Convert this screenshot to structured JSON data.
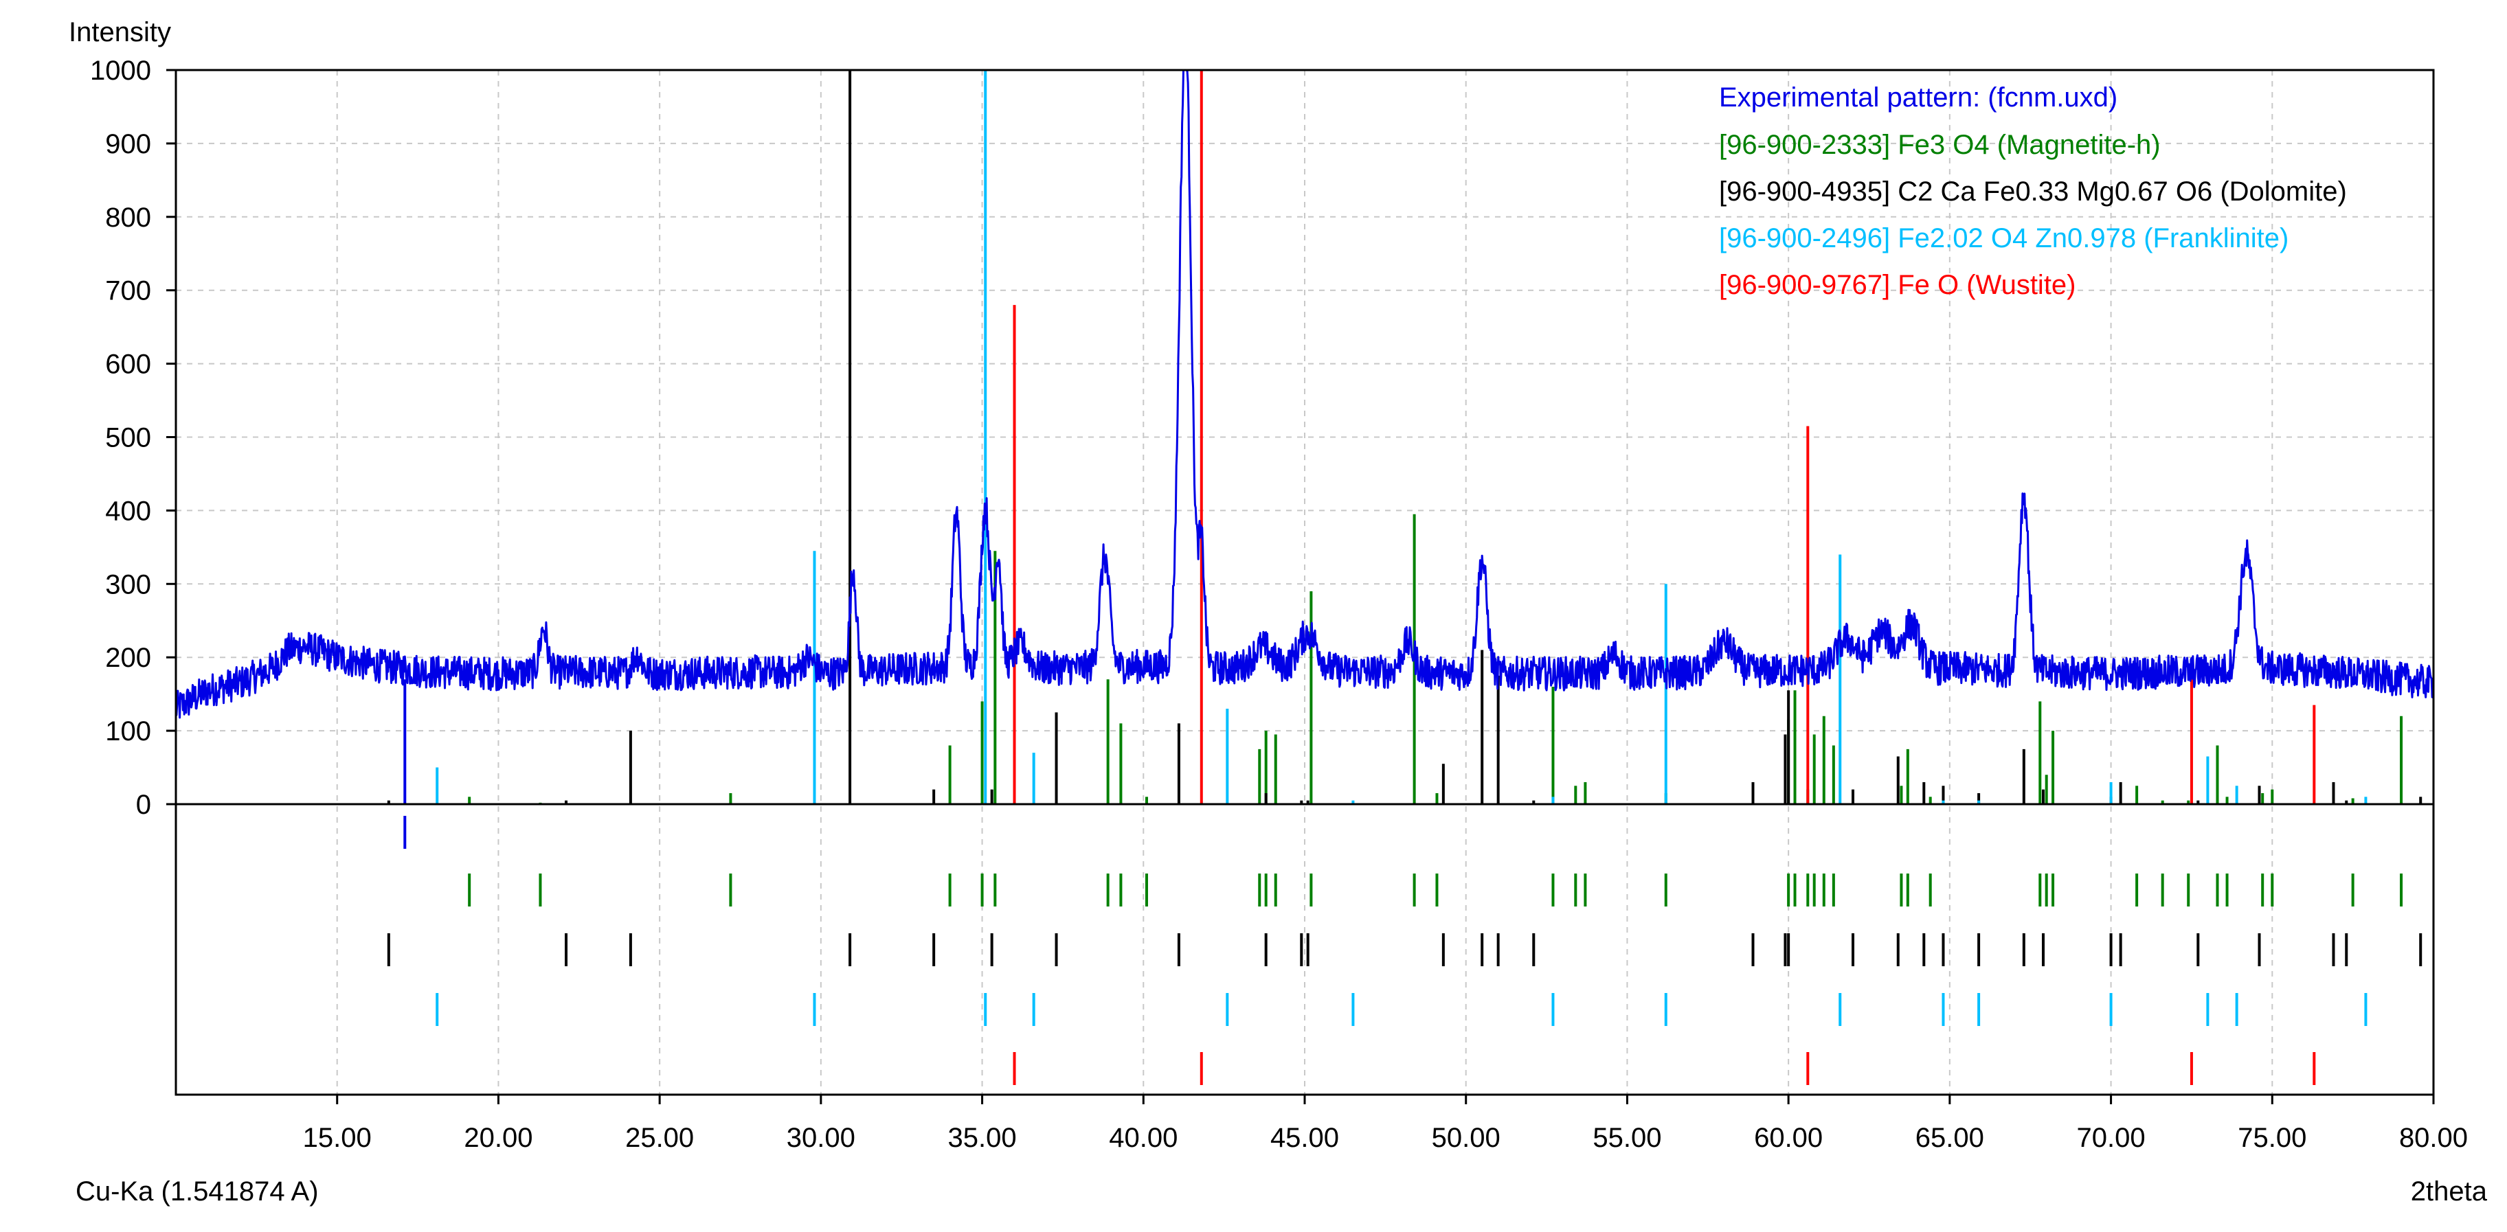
{
  "chart_data": {
    "type": "line",
    "xlabel": "2theta",
    "ylabel": "Intensity",
    "footer_left": "Cu-Ka (1.541874 A)",
    "xlim": [
      10,
      80
    ],
    "ylim": [
      0,
      1000
    ],
    "xticks": [
      "15.00",
      "20.00",
      "25.00",
      "30.00",
      "35.00",
      "40.00",
      "45.00",
      "50.00",
      "55.00",
      "60.00",
      "65.00",
      "70.00",
      "75.00",
      "80.00"
    ],
    "yticks": [
      "0",
      "100",
      "200",
      "300",
      "400",
      "500",
      "600",
      "700",
      "800",
      "900",
      "1000"
    ],
    "grid": true,
    "legend_position": "top-right",
    "experimental": {
      "name": "Experimental pattern: (fcnm.uxd)",
      "color": "#0000e6",
      "baseline": [
        [
          10,
          130
        ],
        [
          11,
          155
        ],
        [
          12,
          165
        ],
        [
          13,
          185
        ],
        [
          13.5,
          210
        ],
        [
          14,
          215
        ],
        [
          15,
          200
        ],
        [
          16,
          190
        ],
        [
          17,
          185
        ],
        [
          18,
          180
        ],
        [
          20,
          178
        ],
        [
          22,
          180
        ],
        [
          25,
          178
        ],
        [
          28,
          180
        ],
        [
          30,
          178
        ],
        [
          33,
          185
        ],
        [
          35,
          190
        ],
        [
          37,
          185
        ],
        [
          40,
          188
        ],
        [
          43,
          185
        ],
        [
          46,
          182
        ],
        [
          48,
          180
        ],
        [
          50,
          178
        ],
        [
          55,
          178
        ],
        [
          58,
          180
        ],
        [
          60,
          182
        ],
        [
          62,
          185
        ],
        [
          65,
          185
        ],
        [
          68,
          180
        ],
        [
          70,
          178
        ],
        [
          72,
          180
        ],
        [
          75,
          185
        ],
        [
          77,
          180
        ],
        [
          80,
          165
        ]
      ],
      "peaks": [
        [
          21.4,
          60,
          0.12
        ],
        [
          24.3,
          25,
          0.15
        ],
        [
          29.6,
          20,
          0.2
        ],
        [
          31.0,
          140,
          0.1
        ],
        [
          34.2,
          210,
          0.12
        ],
        [
          35.1,
          215,
          0.14
        ],
        [
          35.5,
          150,
          0.1
        ],
        [
          36.2,
          30,
          0.2
        ],
        [
          38.8,
          150,
          0.15
        ],
        [
          41.3,
          860,
          0.18
        ],
        [
          41.8,
          160,
          0.1
        ],
        [
          43.7,
          30,
          0.3
        ],
        [
          45.1,
          50,
          0.3
        ],
        [
          48.2,
          40,
          0.2
        ],
        [
          50.5,
          155,
          0.15
        ],
        [
          54.6,
          25,
          0.2
        ],
        [
          58.0,
          40,
          0.3
        ],
        [
          61.8,
          40,
          0.3
        ],
        [
          62.9,
          50,
          0.3
        ],
        [
          63.8,
          60,
          0.25
        ],
        [
          67.3,
          240,
          0.15
        ],
        [
          74.2,
          155,
          0.2
        ]
      ]
    },
    "phases": [
      {
        "name": "[96-900-2333] Fe3 O4  (Magnetite-h)",
        "color": "#008000",
        "peaks": [
          [
            19.1,
            10
          ],
          [
            21.3,
            2
          ],
          [
            27.2,
            15
          ],
          [
            34.0,
            80
          ],
          [
            35.0,
            140
          ],
          [
            35.4,
            345
          ],
          [
            38.9,
            170
          ],
          [
            39.3,
            110
          ],
          [
            40.1,
            10
          ],
          [
            43.6,
            75
          ],
          [
            43.8,
            100
          ],
          [
            44.1,
            95
          ],
          [
            45.2,
            290
          ],
          [
            48.4,
            395
          ],
          [
            49.1,
            15
          ],
          [
            52.7,
            160
          ],
          [
            53.4,
            25
          ],
          [
            53.7,
            30
          ],
          [
            56.2,
            15
          ],
          [
            60.0,
            115
          ],
          [
            60.2,
            155
          ],
          [
            60.6,
            20
          ],
          [
            60.8,
            95
          ],
          [
            61.1,
            120
          ],
          [
            61.4,
            80
          ],
          [
            63.5,
            25
          ],
          [
            63.7,
            75
          ],
          [
            64.4,
            10
          ],
          [
            67.8,
            140
          ],
          [
            68.0,
            40
          ],
          [
            68.2,
            100
          ],
          [
            70.8,
            25
          ],
          [
            71.6,
            5
          ],
          [
            72.4,
            5
          ],
          [
            73.3,
            80
          ],
          [
            73.6,
            10
          ],
          [
            74.7,
            15
          ],
          [
            75.0,
            20
          ],
          [
            77.5,
            8
          ],
          [
            79.0,
            120
          ]
        ]
      },
      {
        "name": "[96-900-4935] C2 Ca Fe0.33 Mg0.67 O6  (Dolomite)",
        "color": "#000000",
        "peaks": [
          [
            16.6,
            5
          ],
          [
            22.1,
            5
          ],
          [
            24.1,
            100
          ],
          [
            30.9,
            1000
          ],
          [
            33.5,
            20
          ],
          [
            35.3,
            20
          ],
          [
            37.3,
            125
          ],
          [
            41.1,
            110
          ],
          [
            43.8,
            15
          ],
          [
            44.9,
            5
          ],
          [
            45.1,
            5
          ],
          [
            49.3,
            55
          ],
          [
            50.5,
            210
          ],
          [
            51.0,
            175
          ],
          [
            52.1,
            5
          ],
          [
            58.9,
            30
          ],
          [
            59.9,
            95
          ],
          [
            60.0,
            155
          ],
          [
            62.0,
            20
          ],
          [
            63.4,
            65
          ],
          [
            64.2,
            30
          ],
          [
            64.8,
            25
          ],
          [
            65.9,
            15
          ],
          [
            67.3,
            75
          ],
          [
            67.9,
            20
          ],
          [
            70.0,
            10
          ],
          [
            70.3,
            30
          ],
          [
            72.7,
            5
          ],
          [
            74.6,
            25
          ],
          [
            76.9,
            30
          ],
          [
            77.3,
            5
          ],
          [
            79.6,
            10
          ]
        ]
      },
      {
        "name": "[96-900-2496] Fe2.02 O4 Zn0.978  (Franklinite)",
        "color": "#00bfff",
        "peaks": [
          [
            18.1,
            50
          ],
          [
            29.8,
            345
          ],
          [
            35.1,
            1000
          ],
          [
            36.6,
            70
          ],
          [
            42.6,
            130
          ],
          [
            46.5,
            5
          ],
          [
            52.7,
            10
          ],
          [
            56.2,
            300
          ],
          [
            61.6,
            340
          ],
          [
            64.8,
            5
          ],
          [
            65.9,
            5
          ],
          [
            70.0,
            30
          ],
          [
            73.0,
            65
          ],
          [
            73.9,
            25
          ],
          [
            77.9,
            10
          ]
        ]
      },
      {
        "name": "[96-900-9767] Fe O  (Wustite)",
        "color": "#ff0000",
        "peaks": [
          [
            36.0,
            680
          ],
          [
            41.8,
            1000
          ],
          [
            60.6,
            515
          ],
          [
            72.5,
            195
          ],
          [
            76.3,
            135
          ]
        ]
      }
    ],
    "experimental_marker": [
      17.1
    ]
  }
}
